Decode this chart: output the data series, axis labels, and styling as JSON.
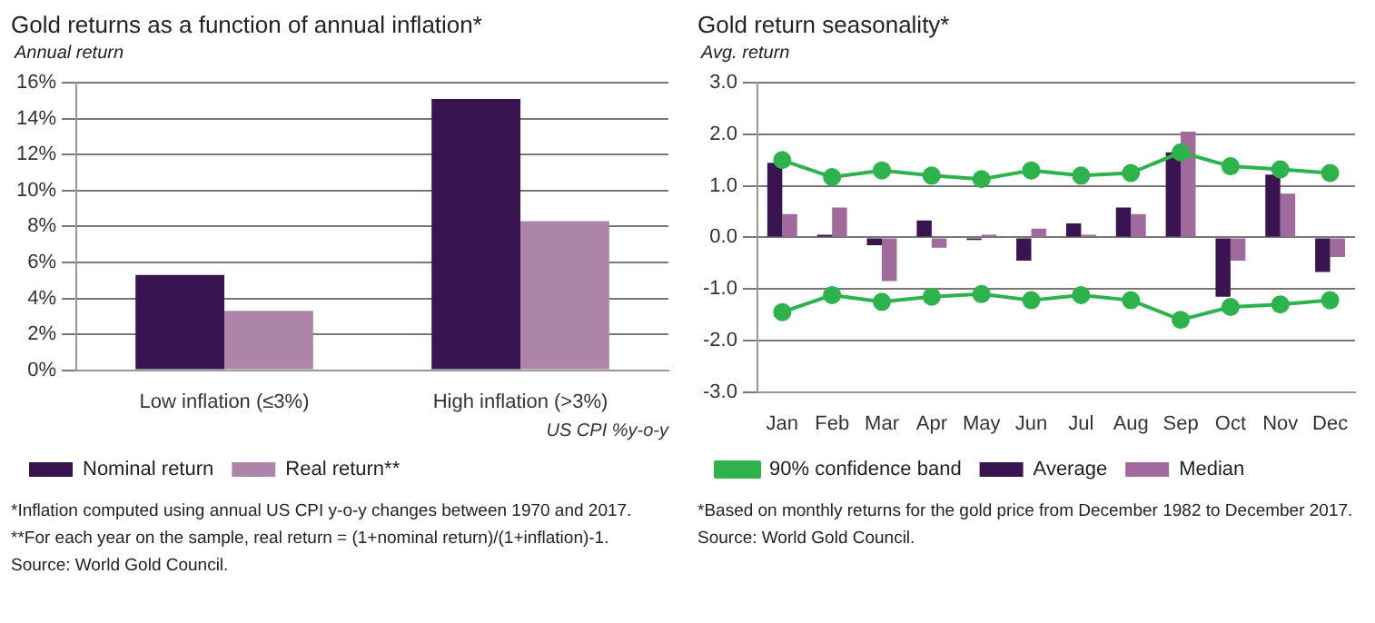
{
  "chart_data": [
    {
      "type": "bar",
      "title": "Gold returns as a function of annual inflation*",
      "ylabel": "Annual return",
      "xlabel": "US CPI %y-o-y",
      "categories": [
        "Low inflation (≤3%)",
        "High inflation (>3%)"
      ],
      "series": [
        {
          "name": "Nominal return",
          "color": "#3a1450",
          "values": [
            5.3,
            15.1
          ]
        },
        {
          "name": "Real return**",
          "color": "#ad85a8",
          "values": [
            3.3,
            8.3
          ]
        }
      ],
      "ylim": [
        0,
        16
      ],
      "yticks": [
        {
          "value": 0,
          "label": "0%"
        },
        {
          "value": 2,
          "label": "2%"
        },
        {
          "value": 4,
          "label": "4%"
        },
        {
          "value": 6,
          "label": "6%"
        },
        {
          "value": 8,
          "label": "8%"
        },
        {
          "value": 10,
          "label": "10%"
        },
        {
          "value": 12,
          "label": "12%"
        },
        {
          "value": 14,
          "label": "14%"
        },
        {
          "value": 16,
          "label": "16%"
        }
      ],
      "grid": "y",
      "legend": "bottom",
      "annotations": [
        "*Inflation computed using annual US CPI y-o-y changes between 1970 and 2017.",
        "**For each year on the sample, real return = (1+nominal return)/(1+inflation)-1.",
        "Source: World Gold Council."
      ]
    },
    {
      "type": "bar",
      "title": "Gold return seasonality*",
      "ylabel": "Avg. return",
      "categories": [
        "Jan",
        "Feb",
        "Mar",
        "Apr",
        "May",
        "Jun",
        "Jul",
        "Aug",
        "Sep",
        "Oct",
        "Nov",
        "Dec"
      ],
      "series": [
        {
          "name": "Average",
          "color": "#3a1450",
          "values": [
            1.45,
            0.05,
            -0.15,
            0.33,
            -0.05,
            -0.45,
            0.27,
            0.58,
            1.65,
            -1.15,
            1.22,
            -0.67
          ]
        },
        {
          "name": "Median",
          "color": "#a06a9c",
          "values": [
            0.45,
            0.58,
            -0.85,
            -0.2,
            0.05,
            0.17,
            0.05,
            0.45,
            2.05,
            -0.45,
            0.85,
            -0.38
          ]
        },
        {
          "name": "90% confidence band",
          "type": "line",
          "color": "#2eb34c",
          "values": [
            1.5,
            1.17,
            1.3,
            1.2,
            1.13,
            1.3,
            1.2,
            1.25,
            1.65,
            1.38,
            1.32,
            1.25
          ]
        },
        {
          "type": "line",
          "color": "#2eb34c",
          "values": [
            -1.45,
            -1.12,
            -1.25,
            -1.15,
            -1.1,
            -1.22,
            -1.12,
            -1.22,
            -1.6,
            -1.35,
            -1.3,
            -1.22
          ]
        }
      ],
      "ylim": [
        -3,
        3
      ],
      "yticks": [
        {
          "value": -3,
          "label": "-3.0"
        },
        {
          "value": -2,
          "label": "-2.0"
        },
        {
          "value": -1,
          "label": "-1.0"
        },
        {
          "value": 0,
          "label": "0.0"
        },
        {
          "value": 1,
          "label": "1.0"
        },
        {
          "value": 2,
          "label": "2.0"
        },
        {
          "value": 3,
          "label": "3.0"
        }
      ],
      "grid": "y",
      "legend": "bottom",
      "marker": "circle",
      "line_style": "solid",
      "annotations": [
        "*Based on monthly returns for the gold price from December 1982 to December 2017.",
        "Source: World Gold Council."
      ]
    }
  ]
}
